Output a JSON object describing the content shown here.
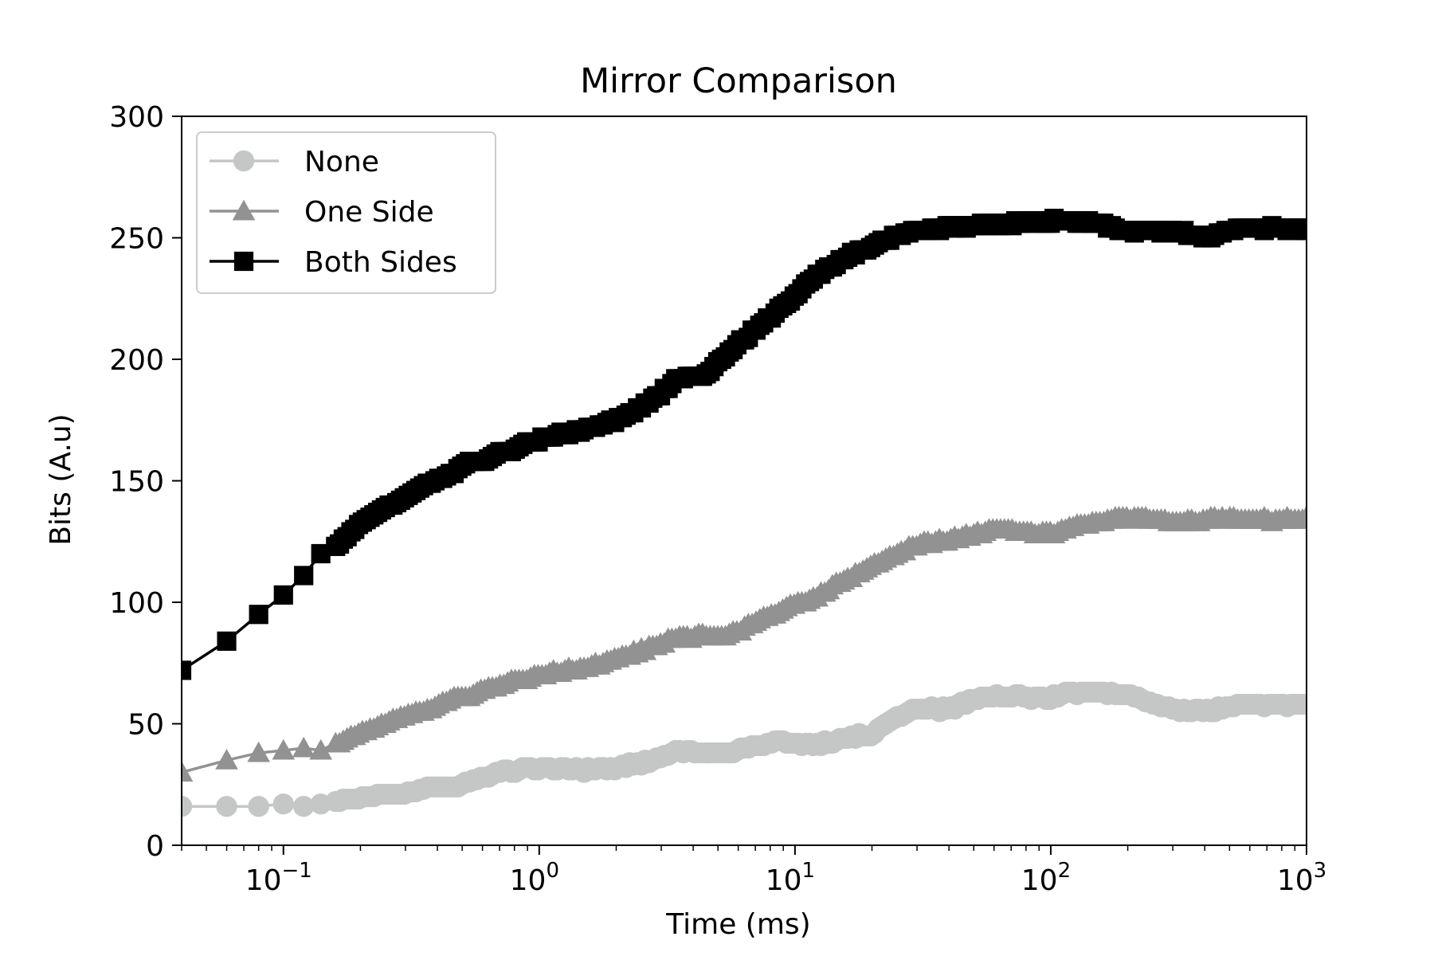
{
  "chart_data": {
    "type": "line",
    "title": "Mirror Comparison",
    "xlabel": "Time (ms)",
    "ylabel": "Bits (A.u)",
    "xscale": "log",
    "xlim": [
      0.04,
      1000
    ],
    "ylim": [
      0,
      300
    ],
    "xticks": [
      {
        "value": 0.1,
        "base": "10",
        "exp": "−1"
      },
      {
        "value": 1,
        "base": "10",
        "exp": "0"
      },
      {
        "value": 10,
        "base": "10",
        "exp": "1"
      },
      {
        "value": 100,
        "base": "10",
        "exp": "2"
      },
      {
        "value": 1000,
        "base": "10",
        "exp": "3"
      }
    ],
    "yticks": [
      0,
      50,
      100,
      150,
      200,
      250,
      300
    ],
    "grid": false,
    "legend_position": "top-left",
    "series": [
      {
        "name": "None",
        "marker": "circle",
        "color": "#c5c7c6",
        "anchors": [
          [
            0.04,
            15
          ],
          [
            0.06,
            16
          ],
          [
            0.08,
            16
          ],
          [
            0.1,
            17
          ],
          [
            0.12,
            17
          ],
          [
            0.15,
            18
          ],
          [
            0.2,
            19
          ],
          [
            0.3,
            22
          ],
          [
            0.4,
            24
          ],
          [
            0.5,
            25
          ],
          [
            0.7,
            30
          ],
          [
            1,
            32
          ],
          [
            1.5,
            31
          ],
          [
            2,
            32
          ],
          [
            2.5,
            34
          ],
          [
            3,
            36
          ],
          [
            3.5,
            39
          ],
          [
            4.5,
            38
          ],
          [
            5.5,
            38
          ],
          [
            7,
            41
          ],
          [
            9,
            43
          ],
          [
            12,
            41
          ],
          [
            15,
            44
          ],
          [
            20,
            46
          ],
          [
            25,
            53
          ],
          [
            30,
            56
          ],
          [
            40,
            56
          ],
          [
            50,
            60
          ],
          [
            60,
            62
          ],
          [
            80,
            61
          ],
          [
            100,
            61
          ],
          [
            120,
            63
          ],
          [
            150,
            63
          ],
          [
            200,
            62
          ],
          [
            250,
            59
          ],
          [
            300,
            56
          ],
          [
            400,
            55
          ],
          [
            500,
            57
          ],
          [
            700,
            58
          ],
          [
            1000,
            58
          ]
        ]
      },
      {
        "name": "One Side",
        "marker": "triangle",
        "color": "#929292",
        "anchors": [
          [
            0.04,
            31
          ],
          [
            0.06,
            35
          ],
          [
            0.08,
            38
          ],
          [
            0.1,
            39
          ],
          [
            0.12,
            39
          ],
          [
            0.14,
            39
          ],
          [
            0.17,
            43
          ],
          [
            0.2,
            47
          ],
          [
            0.3,
            53
          ],
          [
            0.4,
            58
          ],
          [
            0.5,
            61
          ],
          [
            0.7,
            66
          ],
          [
            1,
            70
          ],
          [
            1.5,
            73
          ],
          [
            2,
            77
          ],
          [
            2.5,
            80
          ],
          [
            3,
            83
          ],
          [
            3.5,
            86
          ],
          [
            4.5,
            86
          ],
          [
            5.5,
            86
          ],
          [
            7,
            92
          ],
          [
            9,
            97
          ],
          [
            12,
            102
          ],
          [
            15,
            108
          ],
          [
            20,
            115
          ],
          [
            25,
            120
          ],
          [
            30,
            124
          ],
          [
            40,
            126
          ],
          [
            50,
            128
          ],
          [
            60,
            130
          ],
          [
            80,
            129
          ],
          [
            100,
            128
          ],
          [
            120,
            131
          ],
          [
            150,
            133
          ],
          [
            200,
            135
          ],
          [
            300,
            133
          ],
          [
            400,
            134
          ],
          [
            500,
            135
          ],
          [
            700,
            134
          ],
          [
            1000,
            134
          ]
        ]
      },
      {
        "name": "Both Sides",
        "marker": "square",
        "color": "#000000",
        "anchors": [
          [
            0.04,
            71
          ],
          [
            0.06,
            84
          ],
          [
            0.08,
            95
          ],
          [
            0.1,
            103
          ],
          [
            0.12,
            112
          ],
          [
            0.14,
            120
          ],
          [
            0.17,
            125
          ],
          [
            0.2,
            132
          ],
          [
            0.25,
            139
          ],
          [
            0.3,
            144
          ],
          [
            0.4,
            150
          ],
          [
            0.5,
            156
          ],
          [
            0.7,
            161
          ],
          [
            1,
            167
          ],
          [
            1.5,
            171
          ],
          [
            2,
            175
          ],
          [
            2.5,
            180
          ],
          [
            3,
            186
          ],
          [
            3.5,
            192
          ],
          [
            4.5,
            194
          ],
          [
            5.5,
            203
          ],
          [
            7,
            212
          ],
          [
            9,
            222
          ],
          [
            12,
            234
          ],
          [
            15,
            241
          ],
          [
            20,
            247
          ],
          [
            25,
            251
          ],
          [
            30,
            253
          ],
          [
            40,
            254
          ],
          [
            50,
            255
          ],
          [
            60,
            256
          ],
          [
            80,
            256
          ],
          [
            100,
            257
          ],
          [
            120,
            257
          ],
          [
            150,
            256
          ],
          [
            200,
            253
          ],
          [
            300,
            253
          ],
          [
            400,
            250
          ],
          [
            500,
            253
          ],
          [
            700,
            254
          ],
          [
            1000,
            254
          ]
        ]
      }
    ]
  }
}
